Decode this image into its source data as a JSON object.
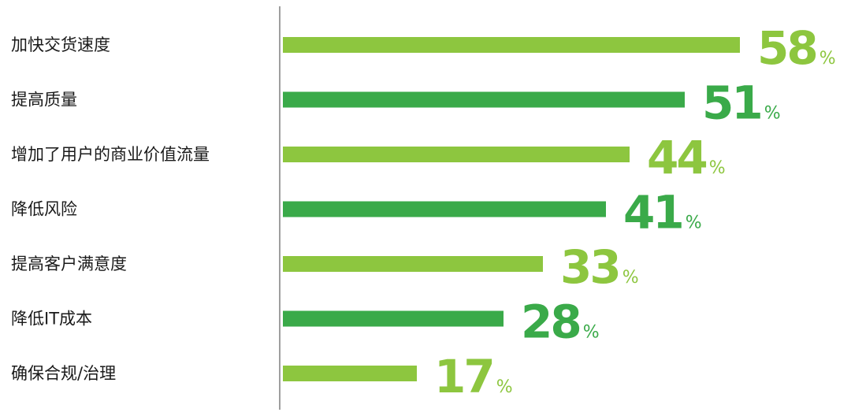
{
  "chart_data": {
    "type": "bar",
    "orientation": "horizontal",
    "categories": [
      "加快交货速度",
      "提高质量",
      "增加了用户的商业价值流量",
      "降低风险",
      "提高客户满意度",
      "降低IT成本",
      "确保合规/治理"
    ],
    "values": [
      58,
      51,
      44,
      41,
      33,
      28,
      17
    ],
    "unit_suffix": "%",
    "xlim": [
      0,
      65
    ],
    "grid": false,
    "legend": "none",
    "colors": [
      "#8dc63f",
      "#3aaa49",
      "#8dc63f",
      "#3aaa49",
      "#8dc63f",
      "#3aaa49",
      "#8dc63f"
    ]
  }
}
